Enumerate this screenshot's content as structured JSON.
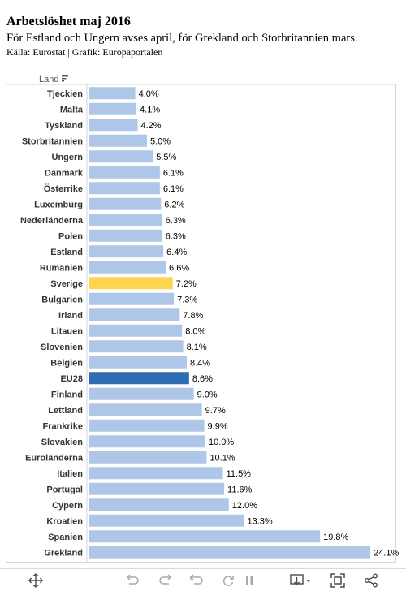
{
  "header": {
    "title": "Arbetslöshet  maj  2016",
    "subtitle": "För Estland och Ungern avses april, för Grekland och Storbritannien mars.",
    "source": "Källa: Eurostat | Grafik: Europaportalen"
  },
  "chart_data": {
    "type": "bar",
    "orientation": "horizontal",
    "title": "Arbetslöshet  maj  2016",
    "dimension_label": "Land",
    "categories": [
      "Tjeckien",
      "Malta",
      "Tyskland",
      "Storbritannien",
      "Ungern",
      "Danmark",
      "Österrike",
      "Luxemburg",
      "Nederländerna",
      "Polen",
      "Estland",
      "Rumänien",
      "Sverige",
      "Bulgarien",
      "Irland",
      "Litauen",
      "Slovenien",
      "Belgien",
      "EU28",
      "Finland",
      "Lettland",
      "Frankrike",
      "Slovakien",
      "Euroländerna",
      "Italien",
      "Portugal",
      "Cypern",
      "Kroatien",
      "Spanien",
      "Grekland"
    ],
    "values": [
      4.0,
      4.1,
      4.2,
      5.0,
      5.5,
      6.1,
      6.1,
      6.2,
      6.3,
      6.3,
      6.4,
      6.6,
      7.2,
      7.3,
      7.8,
      8.0,
      8.1,
      8.4,
      8.6,
      9.0,
      9.7,
      9.9,
      10.0,
      10.1,
      11.5,
      11.6,
      12.0,
      13.3,
      19.8,
      24.1
    ],
    "value_labels": [
      "4.0%",
      "4.1%",
      "4.2%",
      "5.0%",
      "5.5%",
      "6.1%",
      "6.1%",
      "6.2%",
      "6.3%",
      "6.3%",
      "6.4%",
      "6.6%",
      "7.2%",
      "7.3%",
      "7.8%",
      "8.0%",
      "8.1%",
      "8.4%",
      "8.6%",
      "9.0%",
      "9.7%",
      "9.9%",
      "10.0%",
      "10.1%",
      "11.5%",
      "11.6%",
      "12.0%",
      "13.3%",
      "19.8%",
      "24.1%"
    ],
    "xlim": [
      0,
      25
    ],
    "grid": false,
    "colors": {
      "default": "#aec7e8",
      "Sverige": "#ffd44f",
      "EU28": "#2e6db4"
    }
  },
  "toolbar": {
    "icons": [
      "move-icon",
      "undo-icon",
      "redo-icon",
      "revert-icon",
      "pause-icon",
      "download-icon",
      "fullscreen-icon",
      "share-icon"
    ]
  }
}
